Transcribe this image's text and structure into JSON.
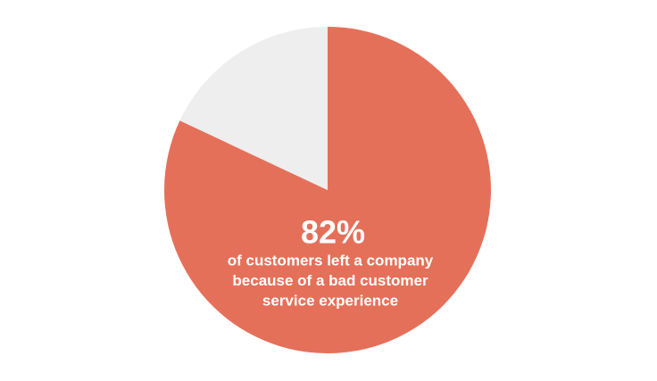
{
  "chart_data": {
    "type": "pie",
    "values": [
      82,
      18
    ],
    "value_labels": [
      "82%",
      null
    ],
    "colors": [
      "#e5705a",
      "#eeeeee"
    ],
    "annotation": [
      "of customers left a company",
      "because of a bad customer",
      "service experience"
    ]
  }
}
